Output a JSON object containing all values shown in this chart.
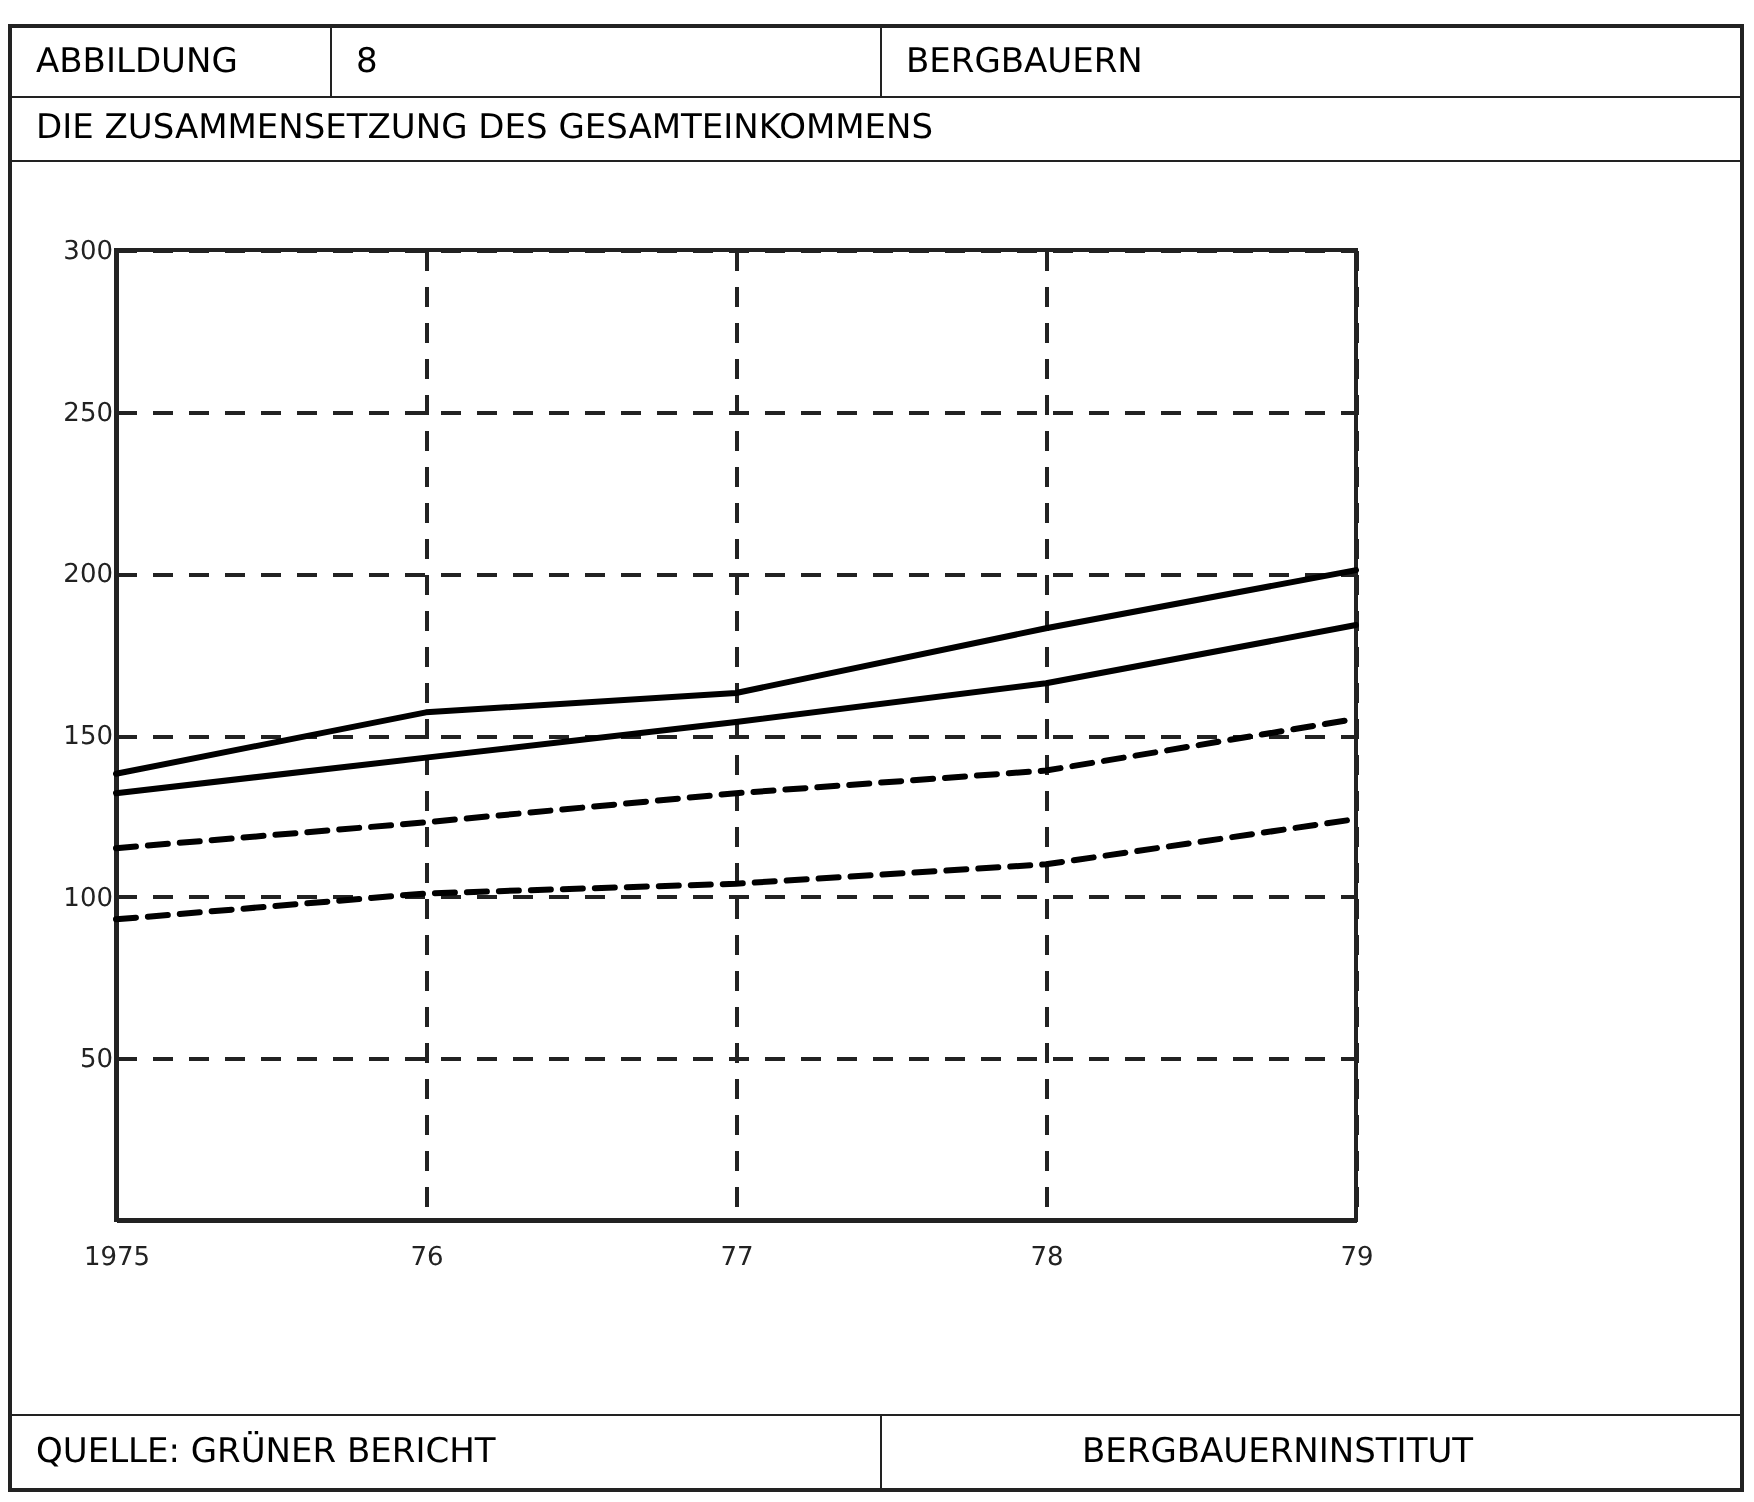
{
  "chart_data": {
    "type": "line",
    "title": "DIE ZUSAMMENSETZUNG DES GESAMTEINKOMMENS",
    "annotations": [
      "ABBILDUNG",
      "8",
      "BERGBAUERN",
      "QUELLE: GRÜNER BERICHT",
      "BERGBAUERNINSTITUT"
    ],
    "categories": [
      "1975",
      "76",
      "77",
      "78",
      "79"
    ],
    "series": [
      {
        "color": "#000000",
        "line_style": "solid",
        "values": [
          138,
          157,
          163,
          183,
          201
        ]
      },
      {
        "color": "#000000",
        "line_style": "solid",
        "values": [
          132,
          143,
          154,
          166,
          184
        ]
      },
      {
        "color": "#000000",
        "line_style": "dashed",
        "values": [
          115,
          123,
          132,
          139,
          155
        ]
      },
      {
        "color": "#000000",
        "line_style": "dashed",
        "values": [
          93,
          101,
          104,
          110,
          124
        ]
      }
    ],
    "ylim": [
      0,
      300
    ],
    "yticks": [
      50,
      100,
      150,
      200,
      250,
      300
    ],
    "grid": true
  }
}
